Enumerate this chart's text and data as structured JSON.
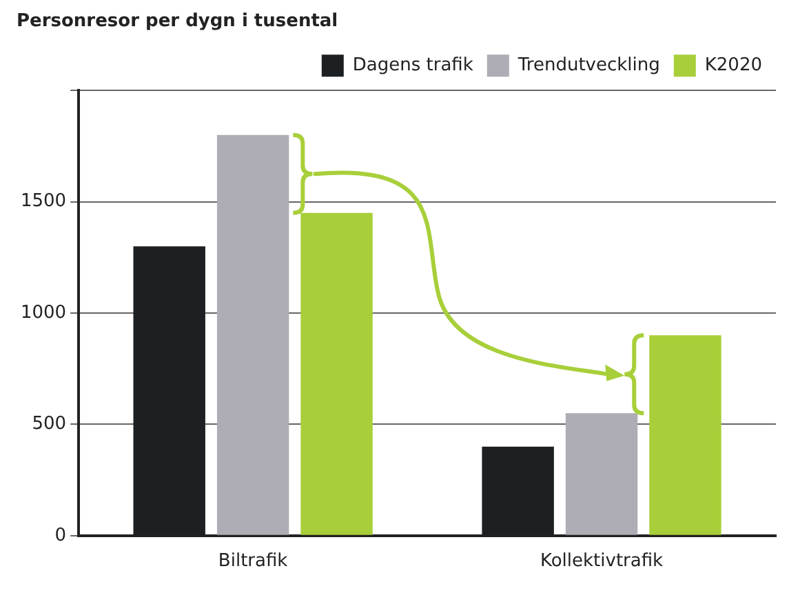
{
  "chart_data": {
    "type": "bar",
    "title": "Personresor per dygn i tusental",
    "categories": [
      "Biltrafik",
      "Kollektivtrafik"
    ],
    "series": [
      {
        "name": "Dagens trafik",
        "color": "#1c2022",
        "values": [
          1300,
          400
        ]
      },
      {
        "name": "Trendutveckling",
        "color": "#aeadb5",
        "values": [
          1800,
          550
        ]
      },
      {
        "name": "K2020",
        "color": "#a8cf3a",
        "values": [
          1450,
          900
        ]
      }
    ],
    "ylim": [
      0,
      2000
    ],
    "yticks": [
      0,
      500,
      1000,
      1500,
      {
        "value": 2000,
        "label": null
      }
    ],
    "grid": "y",
    "legend": "top right"
  }
}
